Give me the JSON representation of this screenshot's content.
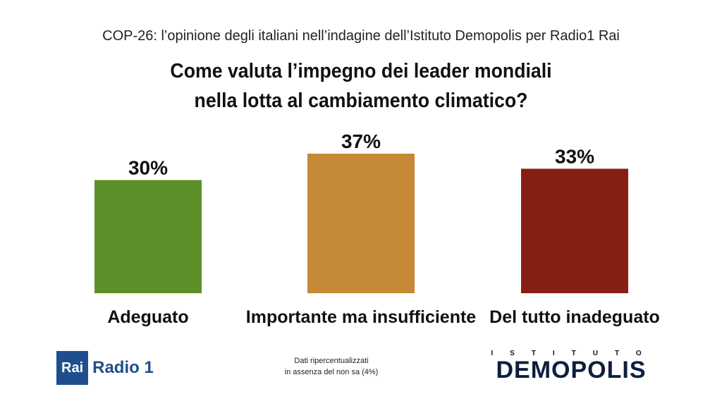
{
  "header": "COP-26: l’opinione degli italiani nell’indagine dell’Istituto Demopolis per Radio1 Rai",
  "title_line1": "Come valuta l’impegno dei leader mondiali",
  "title_line2": "nella lotta al cambiamento climatico?",
  "chart_data": {
    "type": "bar",
    "categories": [
      "Adeguato",
      "Importante ma insufficiente",
      "Del tutto inadeguato"
    ],
    "values": [
      30,
      37,
      33
    ],
    "value_labels": [
      "30%",
      "37%",
      "33%"
    ],
    "colors": [
      "#5e9029",
      "#c68936",
      "#861f13"
    ],
    "title": "Come valuta l’impegno dei leader mondiali nella lotta al cambiamento climatico?",
    "xlabel": "",
    "ylabel": "",
    "grid": false
  },
  "note_line1": "Dati ripercentualizzati",
  "note_line2": "in assenza del non sa (4%)",
  "logo_rai": "Rai",
  "logo_radio": "Radio 1",
  "logo_demopolis_sub": "ISTITUTO",
  "logo_demopolis_main": "DEMOPOLIS"
}
